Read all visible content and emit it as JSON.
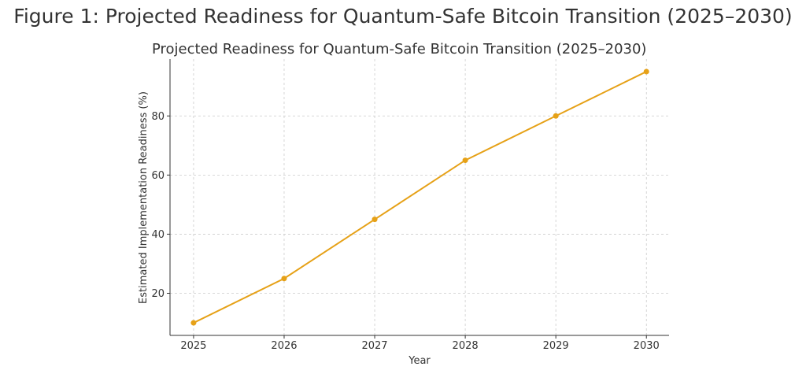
{
  "figure": {
    "caption": "Figure 1: Projected Readiness for Quantum-Safe Bitcoin Transition (2025–2030)"
  },
  "chart_data": {
    "type": "line",
    "title": "Projected Readiness for Quantum-Safe Bitcoin Transition (2025–2030)",
    "xlabel": "Year",
    "ylabel": "Estimated Implementation Readiness (%)",
    "x": [
      2025,
      2026,
      2027,
      2028,
      2029,
      2030
    ],
    "x_tick_labels": [
      "2025",
      "2026",
      "2027",
      "2028",
      "2029",
      "2030"
    ],
    "y_ticks": [
      20,
      40,
      60,
      80
    ],
    "y_tick_labels": [
      "20",
      "40",
      "60",
      "80"
    ],
    "xlim": [
      2024.74,
      2030.25
    ],
    "ylim": [
      5.75,
      99.25
    ],
    "series": [
      {
        "values": [
          10,
          25,
          45,
          65,
          80,
          95
        ],
        "color": "#e6a117"
      }
    ],
    "grid": true,
    "legend": "none"
  }
}
